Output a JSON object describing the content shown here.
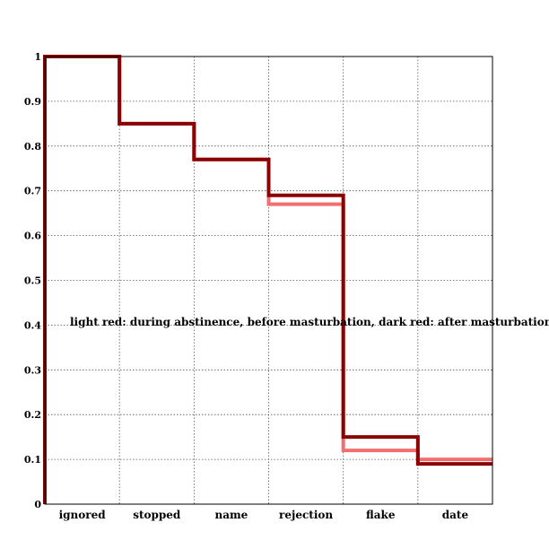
{
  "chart_data": {
    "type": "line",
    "step": true,
    "categories": [
      "ignored",
      "stopped",
      "name",
      "rejection",
      "flake",
      "date"
    ],
    "series": [
      {
        "color": "#f07070",
        "values": [
          1.0,
          0.85,
          0.77,
          0.67,
          0.12,
          0.1
        ]
      },
      {
        "color": "#8b0000",
        "values": [
          1.0,
          0.85,
          0.77,
          0.69,
          0.15,
          0.09
        ]
      }
    ],
    "y_ticks": [
      0,
      0.1,
      0.2,
      0.3,
      0.4,
      0.5,
      0.6,
      0.7,
      0.8,
      0.9,
      1
    ],
    "ylim": [
      0,
      1
    ],
    "grid": true,
    "annotation": "light red: during abstinence, before masturbation, dark red: after masturbation"
  }
}
